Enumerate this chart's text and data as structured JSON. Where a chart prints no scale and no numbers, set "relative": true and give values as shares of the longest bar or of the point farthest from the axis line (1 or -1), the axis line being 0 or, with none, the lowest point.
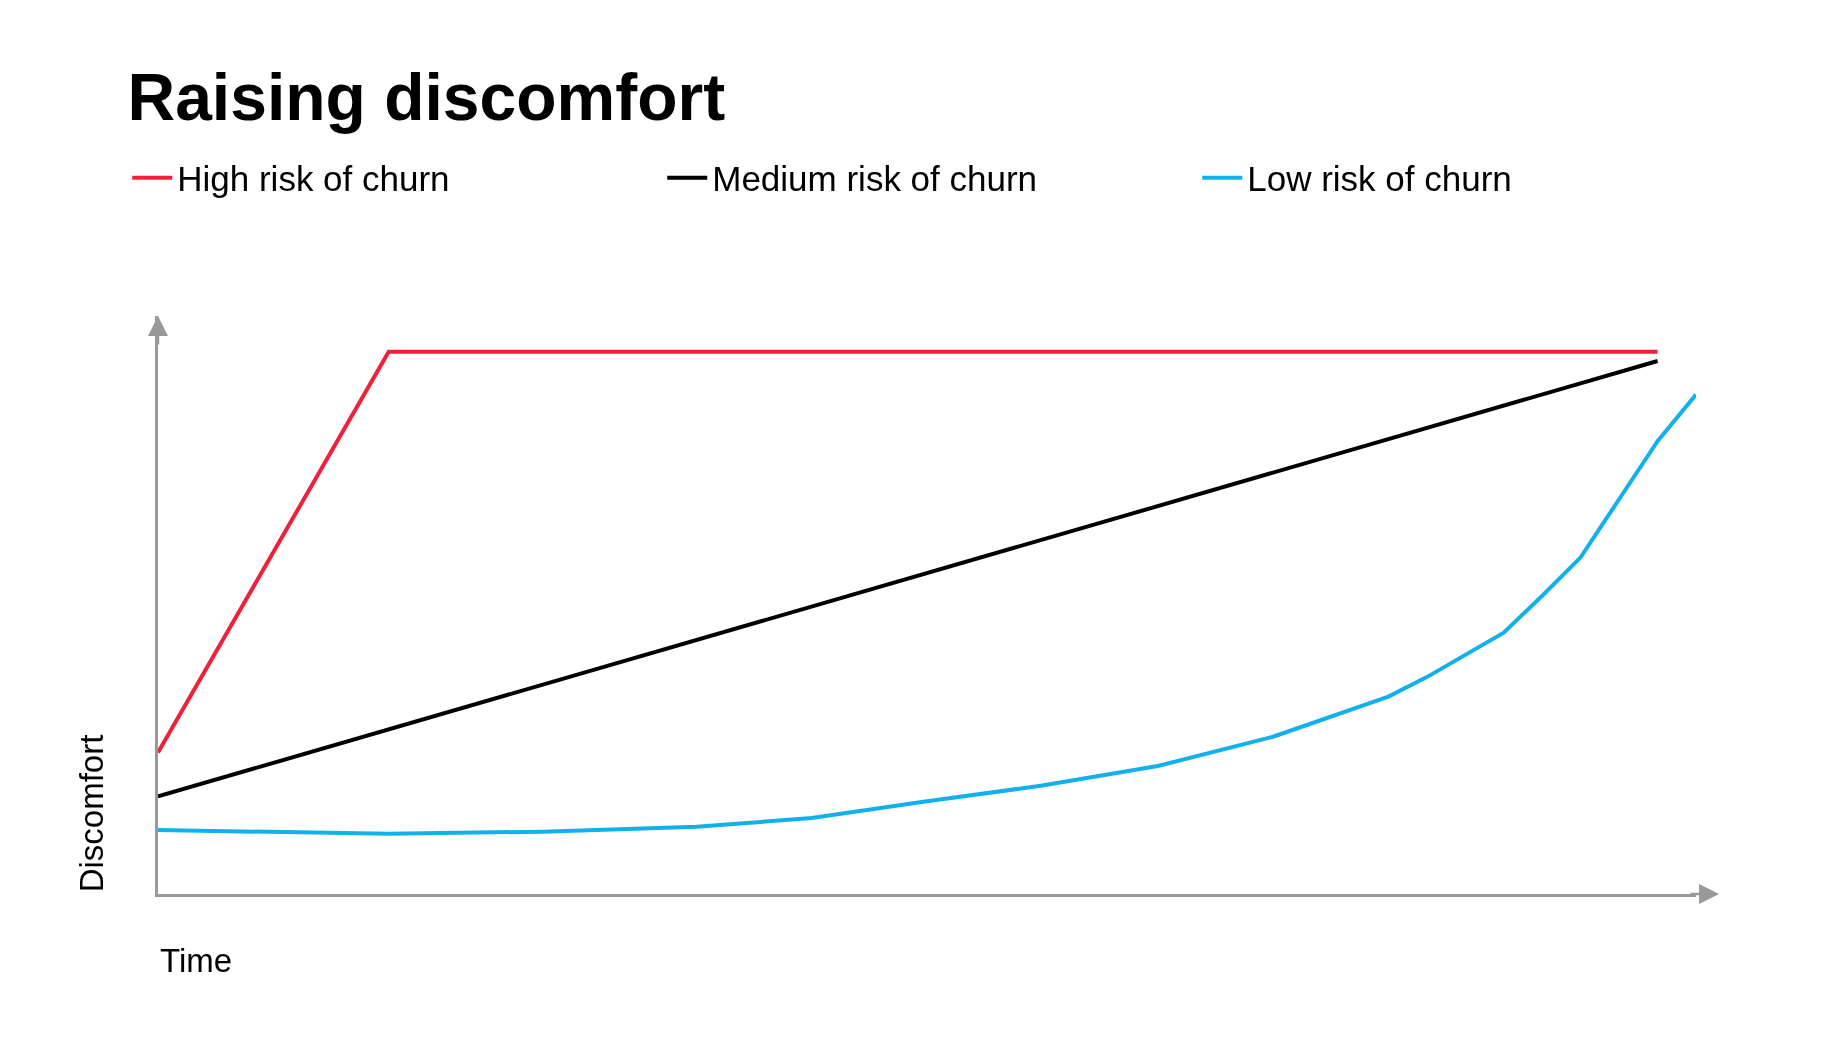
{
  "chart_data": {
    "type": "line",
    "title": "Raising discomfort",
    "xlabel": "Time",
    "ylabel": "Discomfort",
    "relative": true,
    "legend": "top",
    "marker": "none",
    "line_style": "solid",
    "grid": false,
    "categories": [
      null,
      null,
      null,
      null,
      null,
      null,
      null,
      null,
      null,
      null,
      null,
      null,
      null,
      null,
      null,
      null,
      null,
      null,
      null,
      null,
      null,
      null,
      null,
      null,
      null,
      null,
      null,
      null,
      null,
      null,
      null,
      null,
      null,
      null,
      null,
      null,
      null,
      null,
      null,
      null,
      null
    ],
    "series": [
      {
        "name": "High risk of churn",
        "color": "#f0203a",
        "values": [
          0.261,
          null,
          null,
          null,
          null,
          null,
          1,
          null,
          null,
          null,
          null,
          null,
          null,
          null,
          null,
          null,
          null,
          null,
          null,
          null,
          null,
          null,
          null,
          null,
          null,
          null,
          null,
          null,
          null,
          null,
          null,
          null,
          null,
          null,
          null,
          null,
          null,
          null,
          null,
          1,
          null
        ]
      },
      {
        "name": "Medium risk of churn",
        "color": "#000000",
        "values": [
          0.18,
          null,
          null,
          null,
          null,
          null,
          null,
          null,
          null,
          null,
          null,
          null,
          null,
          null,
          null,
          null,
          null,
          null,
          null,
          null,
          null,
          null,
          null,
          null,
          null,
          null,
          null,
          null,
          null,
          null,
          null,
          null,
          null,
          null,
          null,
          null,
          null,
          null,
          null,
          0.983,
          null
        ]
      },
      {
        "name": "Low risk of churn",
        "color": "#12b0ec",
        "values": [
          0.118,
          null,
          null,
          null,
          null,
          null,
          0.111,
          null,
          null,
          null,
          0.115,
          null,
          null,
          null,
          0.124,
          null,
          null,
          0.14,
          null,
          null,
          0.171,
          null,
          null,
          0.2,
          null,
          null,
          0.236,
          null,
          null,
          0.29,
          null,
          null,
          0.364,
          0.4,
          null,
          0.482,
          0.55,
          0.621,
          0.728,
          0.835,
          0.921
        ]
      }
    ]
  }
}
